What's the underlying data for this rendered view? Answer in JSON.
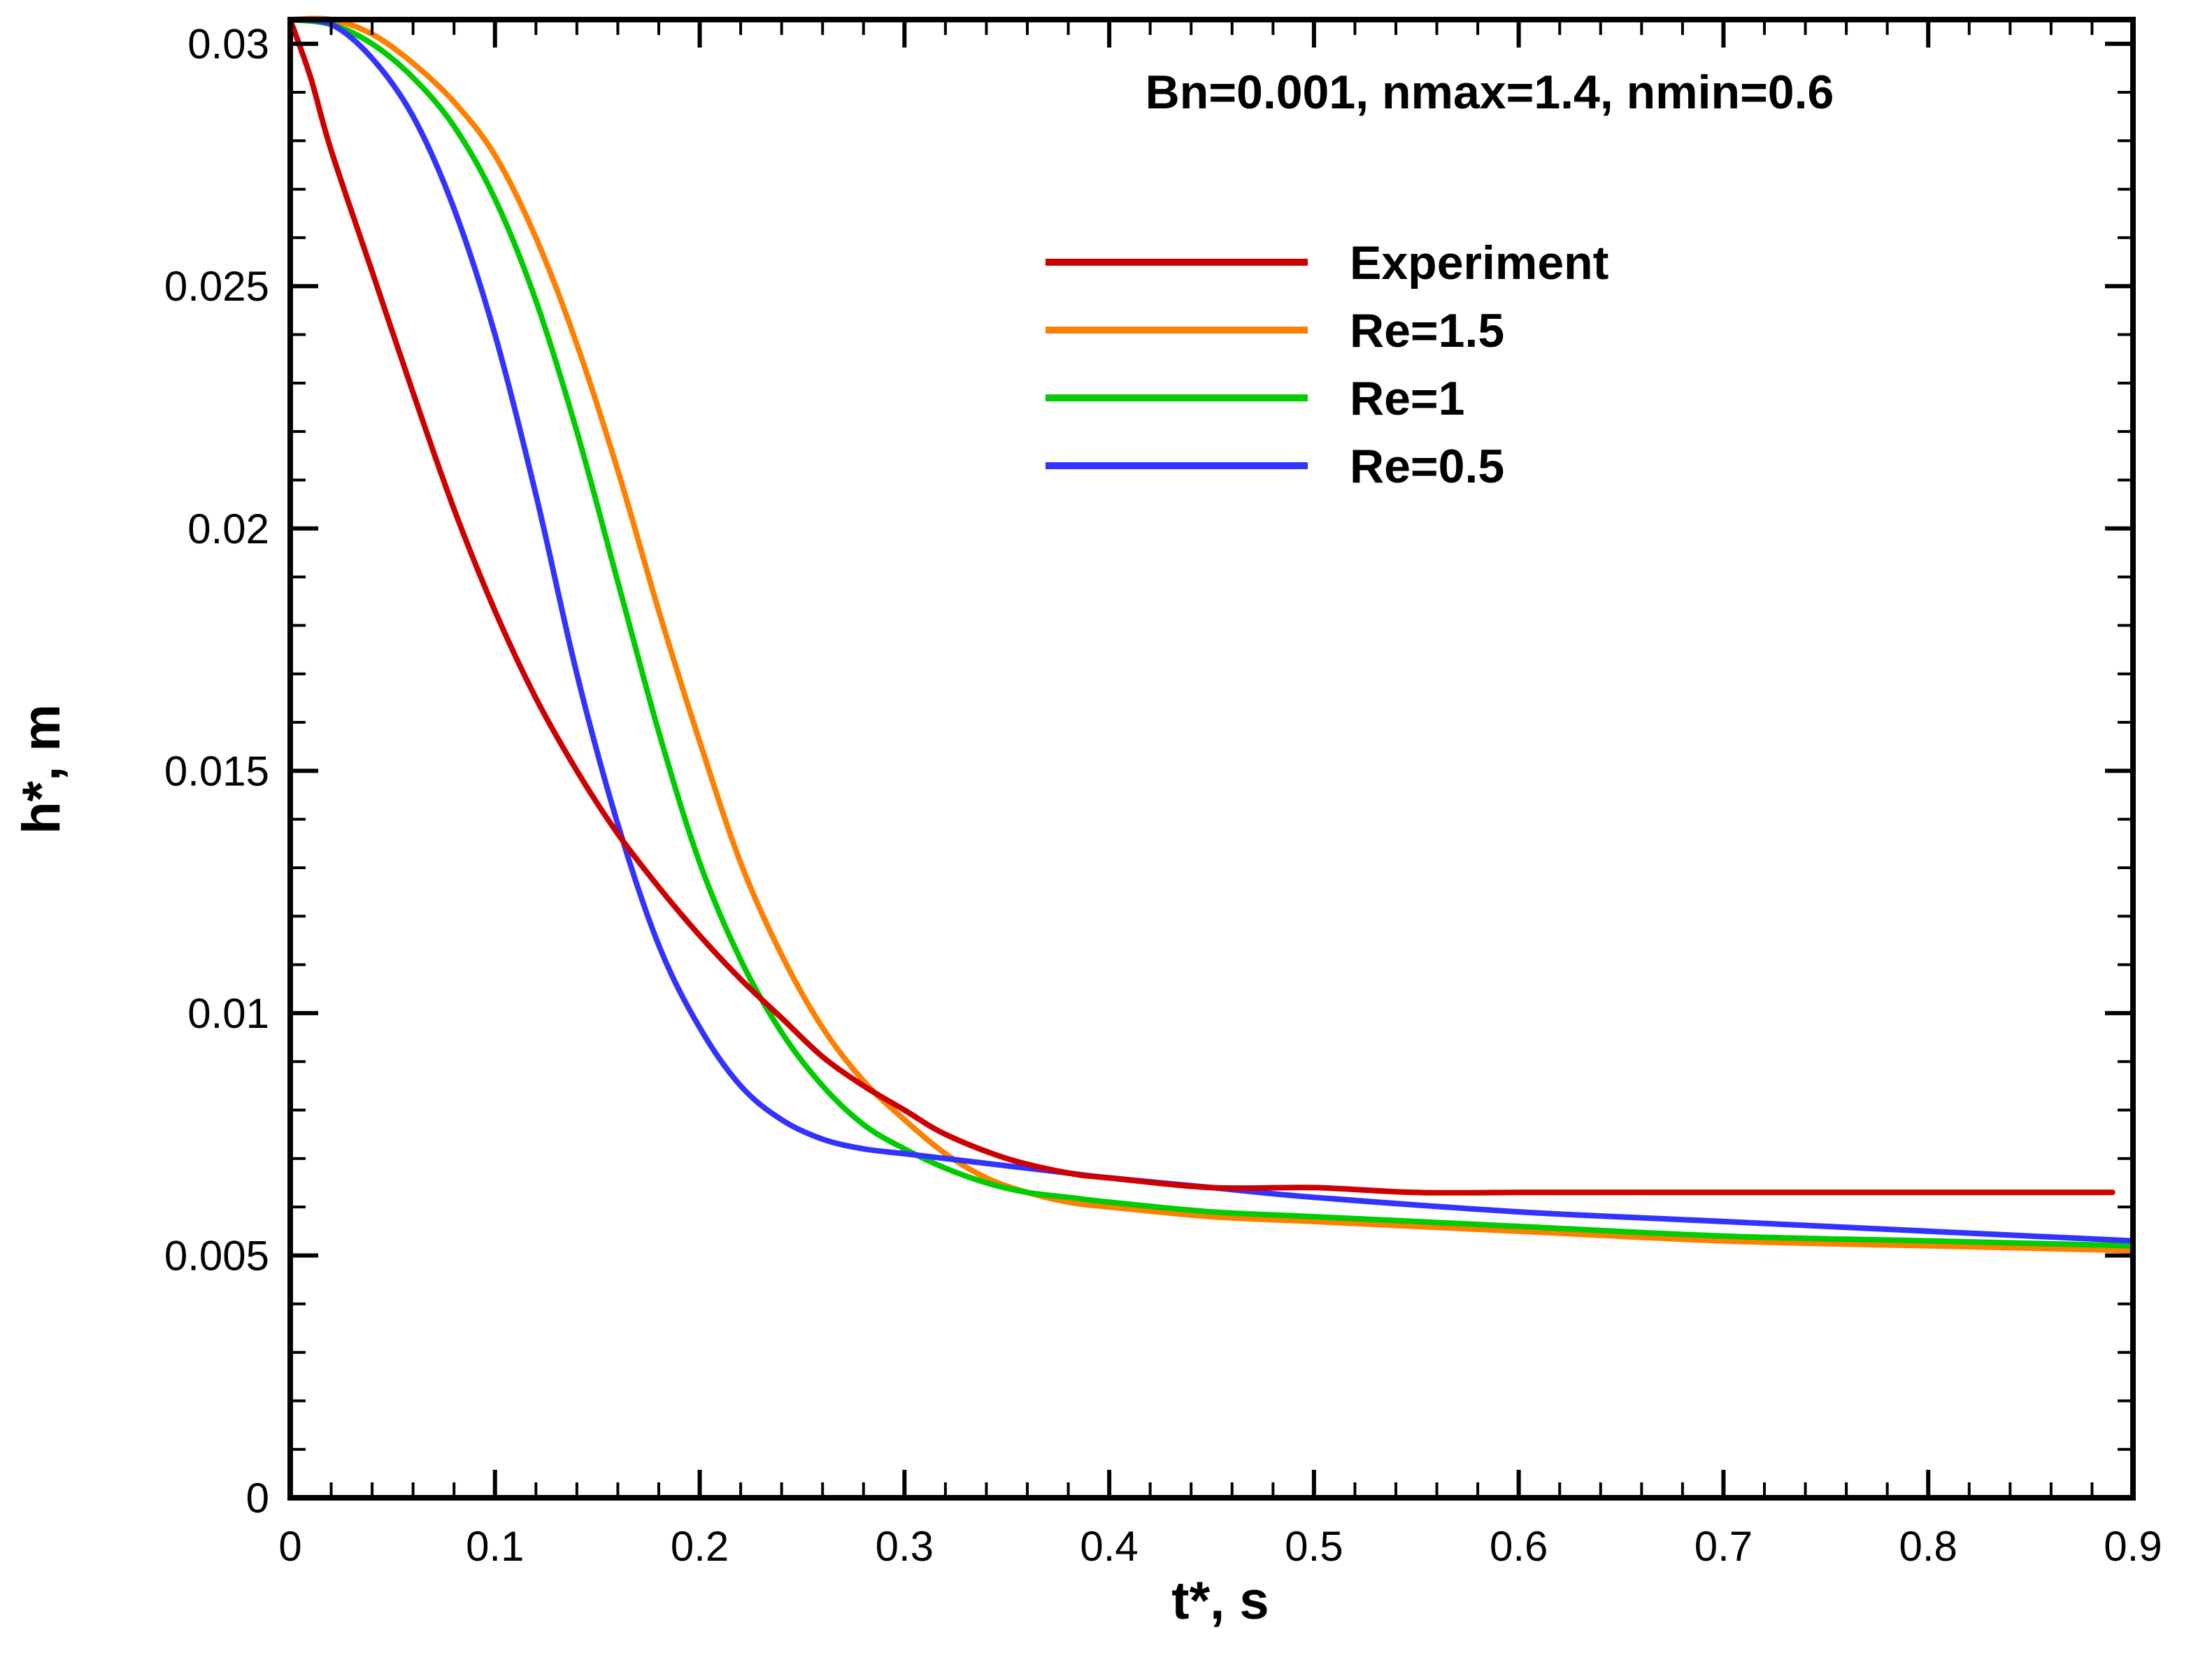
{
  "chart_data": {
    "type": "line",
    "title": "Bn=0.001, nmax=1.4, nmin=0.6",
    "xlabel": "t*, s",
    "ylabel": "h*, m",
    "xlim": [
      0,
      0.9
    ],
    "ylim": [
      0,
      0.0305
    ],
    "x_ticks": [
      0,
      0.1,
      0.2,
      0.3,
      0.4,
      0.5,
      0.6,
      0.7,
      0.8,
      0.9
    ],
    "x_tick_labels": [
      "0",
      "0.1",
      "0.2",
      "0.3",
      "0.4",
      "0.5",
      "0.6",
      "0.7",
      "0.8",
      "0.9"
    ],
    "y_ticks": [
      0,
      0.005,
      0.01,
      0.015,
      0.02,
      0.025,
      0.03
    ],
    "y_tick_labels": [
      "0",
      "0.005",
      "0.01",
      "0.015",
      "0.02",
      "0.025",
      "0.03"
    ],
    "grid": false,
    "legend_position": "top-right",
    "series": [
      {
        "name": "Experiment",
        "color": "#cc0000",
        "x": [
          0,
          0.01,
          0.02,
          0.04,
          0.06,
          0.08,
          0.1,
          0.12,
          0.14,
          0.16,
          0.18,
          0.2,
          0.22,
          0.24,
          0.26,
          0.28,
          0.3,
          0.32,
          0.35,
          0.38,
          0.4,
          0.45,
          0.5,
          0.55,
          0.6,
          0.65,
          0.7,
          0.75,
          0.8,
          0.85,
          0.89
        ],
        "y": [
          0.0305,
          0.0293,
          0.0278,
          0.0253,
          0.0228,
          0.0204,
          0.0183,
          0.0165,
          0.015,
          0.0137,
          0.0126,
          0.0116,
          0.0107,
          0.0099,
          0.0091,
          0.0085,
          0.008,
          0.0075,
          0.007,
          0.0067,
          0.0066,
          0.0064,
          0.0064,
          0.0063,
          0.0063,
          0.0063,
          0.0063,
          0.0063,
          0.0063,
          0.0063,
          0.0063
        ]
      },
      {
        "name": "Re=1.5",
        "color": "#ff8000",
        "x": [
          0,
          0.02,
          0.04,
          0.06,
          0.08,
          0.1,
          0.12,
          0.14,
          0.16,
          0.18,
          0.2,
          0.22,
          0.24,
          0.26,
          0.28,
          0.3,
          0.32,
          0.34,
          0.36,
          0.38,
          0.4,
          0.45,
          0.5,
          0.6,
          0.7,
          0.8,
          0.9
        ],
        "y": [
          0.0305,
          0.0305,
          0.0302,
          0.0296,
          0.0288,
          0.0277,
          0.026,
          0.0238,
          0.0212,
          0.0183,
          0.0156,
          0.0131,
          0.0112,
          0.0097,
          0.0086,
          0.0078,
          0.0071,
          0.0066,
          0.0063,
          0.0061,
          0.006,
          0.0058,
          0.0057,
          0.0055,
          0.0053,
          0.0052,
          0.0051
        ]
      },
      {
        "name": "Re=1",
        "color": "#00cc00",
        "x": [
          0,
          0.02,
          0.04,
          0.06,
          0.08,
          0.1,
          0.12,
          0.14,
          0.16,
          0.18,
          0.2,
          0.22,
          0.24,
          0.26,
          0.28,
          0.3,
          0.32,
          0.34,
          0.36,
          0.38,
          0.4,
          0.45,
          0.5,
          0.6,
          0.7,
          0.8,
          0.9
        ],
        "y": [
          0.0305,
          0.0304,
          0.03,
          0.0293,
          0.0283,
          0.0268,
          0.0247,
          0.022,
          0.0189,
          0.0158,
          0.0131,
          0.0111,
          0.0096,
          0.0085,
          0.0077,
          0.0072,
          0.0068,
          0.0065,
          0.0063,
          0.0062,
          0.0061,
          0.0059,
          0.0058,
          0.0056,
          0.0054,
          0.0053,
          0.0052
        ]
      },
      {
        "name": "Re=0.5",
        "color": "#3333ff",
        "x": [
          0,
          0.02,
          0.04,
          0.06,
          0.08,
          0.1,
          0.12,
          0.14,
          0.16,
          0.18,
          0.2,
          0.22,
          0.24,
          0.26,
          0.28,
          0.3,
          0.32,
          0.34,
          0.36,
          0.38,
          0.4,
          0.45,
          0.5,
          0.6,
          0.7,
          0.8,
          0.9
        ],
        "y": [
          0.0305,
          0.0304,
          0.0297,
          0.0285,
          0.0266,
          0.024,
          0.0207,
          0.017,
          0.0139,
          0.0114,
          0.0097,
          0.0085,
          0.0078,
          0.0074,
          0.0072,
          0.0071,
          0.007,
          0.0069,
          0.0068,
          0.0067,
          0.0066,
          0.0064,
          0.0062,
          0.0059,
          0.0057,
          0.0055,
          0.0053
        ]
      }
    ]
  }
}
